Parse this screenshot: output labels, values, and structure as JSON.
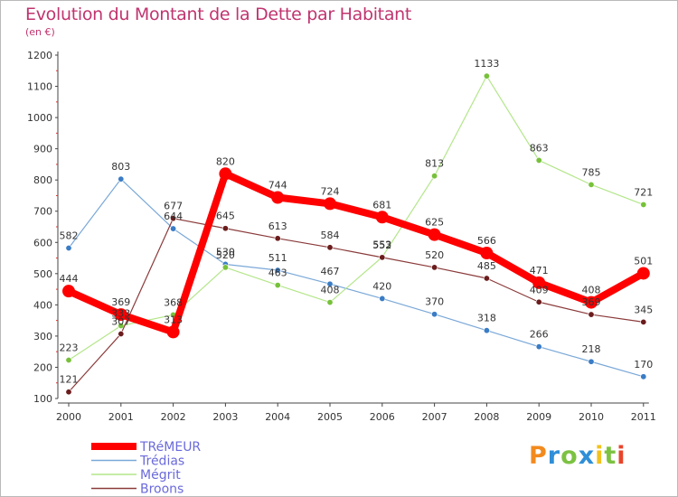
{
  "title": "Evolution du Montant de la Dette par Habitant",
  "subtitle": "(en €)",
  "logo": {
    "text": "Proxiti",
    "letters": [
      {
        "ch": "P",
        "color": "#f28a1e"
      },
      {
        "ch": "r",
        "color": "#2f8fd8"
      },
      {
        "ch": "o",
        "color": "#7cc242"
      },
      {
        "ch": "x",
        "color": "#2f8fd8"
      },
      {
        "ch": "i",
        "color": "#f2c21e"
      },
      {
        "ch": "t",
        "color": "#7cc242"
      },
      {
        "ch": "i",
        "color": "#e8452c"
      }
    ]
  },
  "chart_data": {
    "type": "line",
    "x": [
      "2000",
      "2001",
      "2002",
      "2003",
      "2004",
      "2005",
      "2006",
      "2007",
      "2008",
      "2009",
      "2010",
      "2011"
    ],
    "ylim": [
      100,
      1200
    ],
    "yticks": [
      100,
      200,
      300,
      400,
      500,
      600,
      700,
      800,
      900,
      1000,
      1100,
      1200
    ],
    "grid": false,
    "legend_position": "bottom-left",
    "series": [
      {
        "name": "TRéMEUR",
        "color": "#ff0000",
        "marker_color": "#ff0000",
        "legend_text_color": "#6a6adb",
        "emphasis": true,
        "values": [
          444,
          369,
          313,
          820,
          744,
          724,
          681,
          625,
          566,
          471,
          408,
          501
        ]
      },
      {
        "name": "Trédias",
        "color": "#7aa8d8",
        "marker_color": "#3a7cc5",
        "legend_text_color": "#6a6adb",
        "emphasis": false,
        "values": [
          582,
          803,
          644,
          530,
          511,
          467,
          420,
          370,
          318,
          266,
          218,
          170
        ]
      },
      {
        "name": "Mégrit",
        "color": "#b4e68a",
        "marker_color": "#77c13a",
        "legend_text_color": "#6a6adb",
        "emphasis": false,
        "values": [
          223,
          333,
          368,
          520,
          463,
          408,
          553,
          813,
          1133,
          863,
          785,
          721
        ]
      },
      {
        "name": "Broons",
        "color": "#8b3a3a",
        "marker_color": "#6b1c1c",
        "legend_text_color": "#6a6adb",
        "emphasis": false,
        "values": [
          121,
          307,
          677,
          645,
          613,
          584,
          552,
          520,
          485,
          409,
          369,
          345
        ]
      }
    ],
    "label_values": [
      {
        "series": 0,
        "labels": [
          "444",
          "369",
          "313",
          "820",
          "744",
          "724",
          "681",
          "625",
          "566",
          "471",
          "408",
          "501"
        ]
      },
      {
        "series": 1,
        "labels": [
          "582",
          "803",
          "644",
          "530",
          "511",
          "467",
          "420",
          "370",
          "318",
          "266",
          "218",
          "170"
        ]
      },
      {
        "series": 2,
        "labels": [
          "223",
          "333",
          "368",
          "520",
          "463",
          "408",
          "553",
          "813",
          "1133",
          "863",
          "785",
          "721"
        ]
      },
      {
        "series": 3,
        "labels": [
          "121",
          "307",
          "677",
          "645",
          "613",
          "584",
          "552",
          "520",
          "485",
          "409",
          "369",
          "345"
        ]
      }
    ]
  }
}
